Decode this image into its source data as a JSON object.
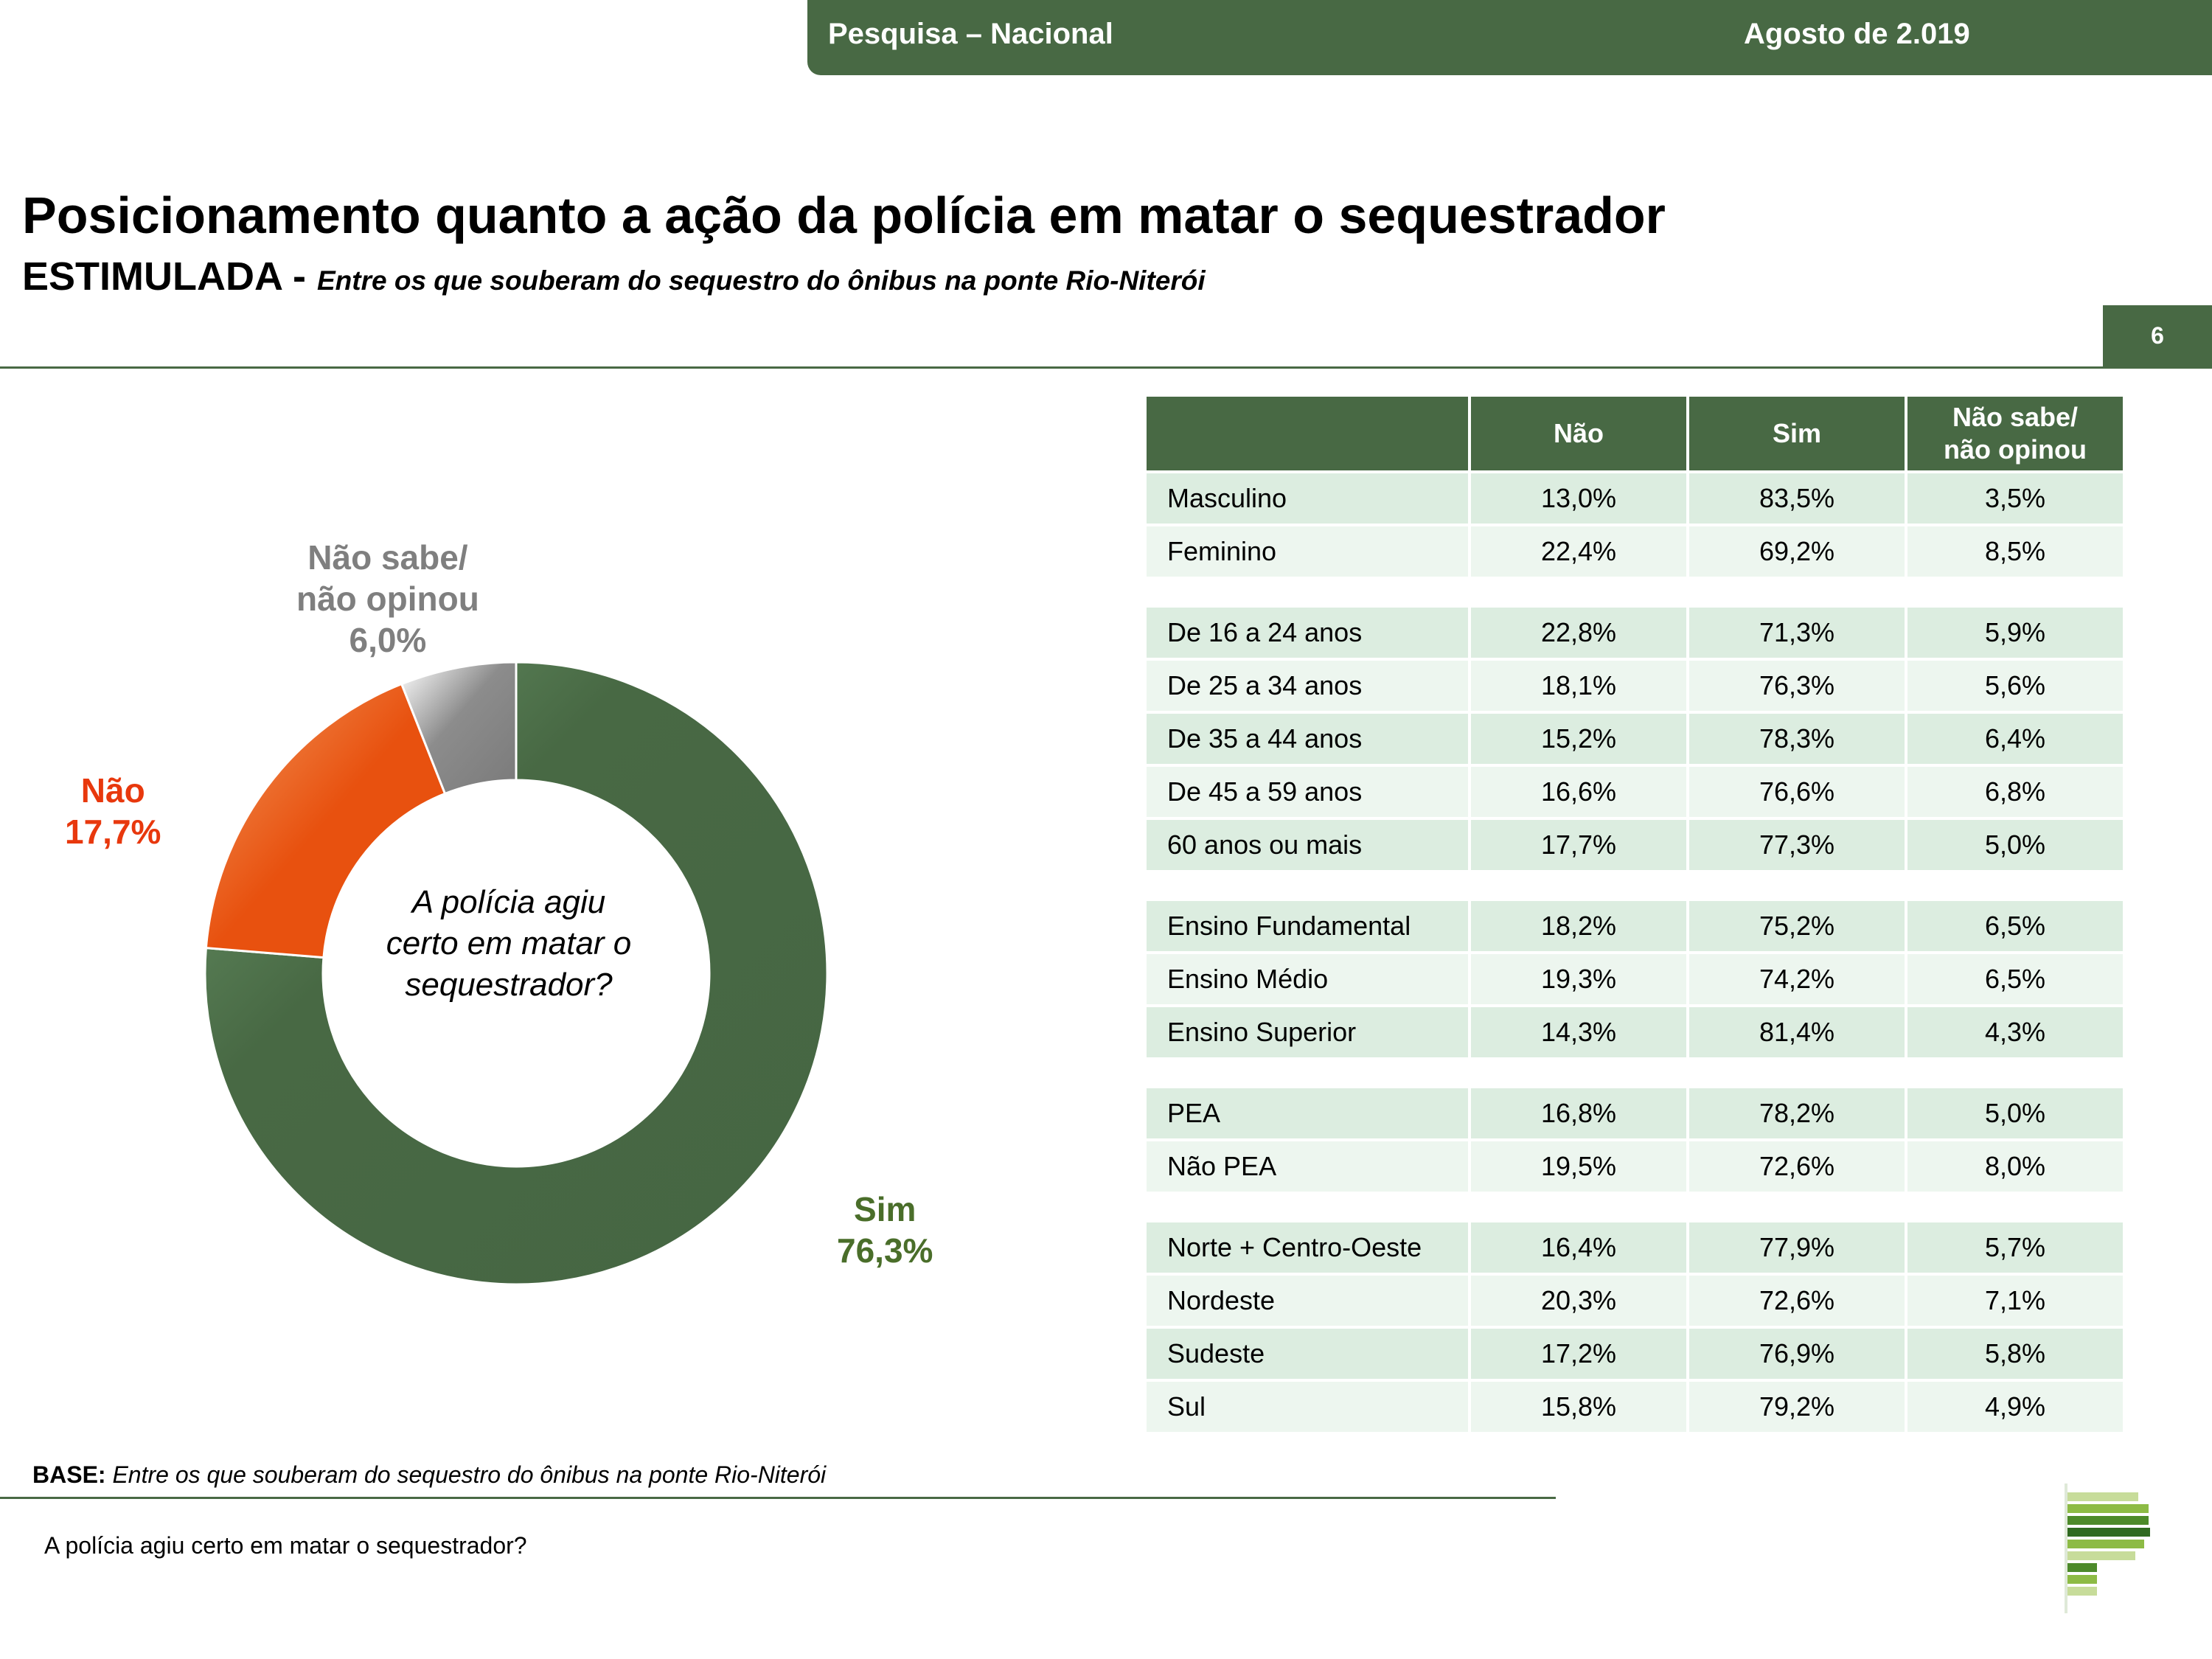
{
  "header": {
    "survey": "Pesquisa – Nacional",
    "date": "Agosto de 2.019"
  },
  "title": "Posicionamento quanto a ação da polícia em matar o sequestrador",
  "subtitle": {
    "main": "ESTIMULADA",
    "separator": " - ",
    "desc": "Entre os que souberam do sequestro do ônibus na ponte Rio-Niterói"
  },
  "page_number": "6",
  "chart_data": {
    "type": "pie",
    "donut": true,
    "center_text": [
      "A polícia agiu",
      "certo em matar o",
      "sequestrador?"
    ],
    "slices": [
      {
        "label": "Sim",
        "value": 76.3,
        "value_text": "76,3%",
        "color": "#486944"
      },
      {
        "label": "Não",
        "value": 17.7,
        "value_text": "17,7%",
        "color": "#e8510f"
      },
      {
        "label_lines": [
          "Não sabe/",
          "não opinou"
        ],
        "label": "Não sabe/ não opinou",
        "value": 6.0,
        "value_text": "6,0%",
        "color": "#7f7f7f"
      }
    ],
    "label_colors": {
      "Sim": "#4a6e2a",
      "Não": "#e8380d",
      "NS": "#7f7f7f"
    }
  },
  "table": {
    "headers": [
      "",
      "Não",
      "Sim",
      "Não sabe/\nnão opinou"
    ],
    "groups": [
      [
        [
          "Masculino",
          "13,0%",
          "83,5%",
          "3,5%"
        ],
        [
          "Feminino",
          "22,4%",
          "69,2%",
          "8,5%"
        ]
      ],
      [
        [
          "De 16 a 24 anos",
          "22,8%",
          "71,3%",
          "5,9%"
        ],
        [
          "De 25 a 34 anos",
          "18,1%",
          "76,3%",
          "5,6%"
        ],
        [
          "De 35 a 44 anos",
          "15,2%",
          "78,3%",
          "6,4%"
        ],
        [
          "De 45 a 59 anos",
          "16,6%",
          "76,6%",
          "6,8%"
        ],
        [
          "60 anos ou mais",
          "17,7%",
          "77,3%",
          "5,0%"
        ]
      ],
      [
        [
          "Ensino Fundamental",
          "18,2%",
          "75,2%",
          "6,5%"
        ],
        [
          "Ensino Médio",
          "19,3%",
          "74,2%",
          "6,5%"
        ],
        [
          "Ensino Superior",
          "14,3%",
          "81,4%",
          "4,3%"
        ]
      ],
      [
        [
          " PEA",
          "16,8%",
          "78,2%",
          "5,0%"
        ],
        [
          " Não PEA",
          "19,5%",
          "72,6%",
          "8,0%"
        ]
      ],
      [
        [
          "Norte + Centro-Oeste",
          "16,4%",
          "77,9%",
          "5,7%"
        ],
        [
          "Nordeste",
          "20,3%",
          "72,6%",
          "7,1%"
        ],
        [
          "Sudeste",
          "17,2%",
          "76,9%",
          "5,8%"
        ],
        [
          "Sul",
          "15,8%",
          "79,2%",
          "4,9%"
        ]
      ]
    ]
  },
  "footer": {
    "base_label": "BASE:",
    "base_text": "Entre os que souberam do sequestro do ônibus na ponte Rio-Niterói",
    "question": "A polícia agiu certo em matar o sequestrador?"
  }
}
